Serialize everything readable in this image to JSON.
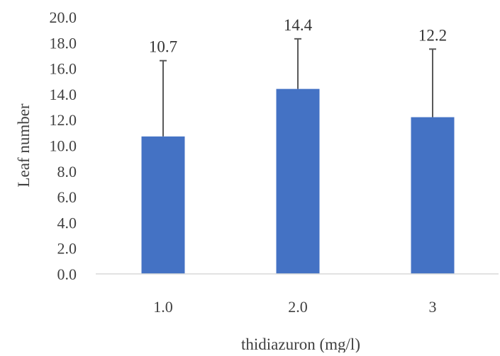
{
  "chart_data": {
    "type": "bar",
    "categories": [
      "1.0",
      "2.0",
      "3"
    ],
    "values": [
      10.7,
      14.4,
      12.2
    ],
    "error_upper": [
      16.6,
      18.3,
      17.5
    ],
    "data_labels": [
      "10.7",
      "14.4",
      "12.2"
    ],
    "xlabel": "thidiazuron (mg/l)",
    "ylabel": "Leaf number",
    "ylim": [
      0,
      20
    ],
    "y_ticks": [
      "0.0",
      "2.0",
      "4.0",
      "6.0",
      "8.0",
      "10.0",
      "12.0",
      "14.0",
      "16.0",
      "18.0",
      "20.0"
    ],
    "grid": false,
    "legend": "none",
    "colors": {
      "bar": "#4472C4",
      "error_bar": "#595959",
      "axis": "#D9D9D9"
    }
  }
}
